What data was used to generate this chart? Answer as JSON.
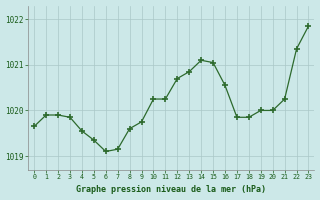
{
  "x": [
    0,
    1,
    2,
    3,
    4,
    5,
    6,
    7,
    8,
    9,
    10,
    11,
    12,
    13,
    14,
    15,
    16,
    17,
    18,
    19,
    20,
    21,
    22,
    23
  ],
  "y": [
    1019.65,
    1019.9,
    1019.9,
    1019.85,
    1019.55,
    1019.35,
    1019.1,
    1019.15,
    1019.6,
    1019.75,
    1020.25,
    1020.25,
    1020.7,
    1020.85,
    1021.1,
    1021.05,
    1020.55,
    1019.85,
    1019.85,
    1020.0,
    1020.0,
    1020.25,
    1021.35,
    1021.85
  ],
  "line_color": "#2d6a2d",
  "marker_color": "#2d6a2d",
  "bg_color": "#cce8e8",
  "grid_color": "#aac8c8",
  "xlabel": "Graphe pression niveau de la mer (hPa)",
  "xlabel_color": "#1a5c1a",
  "tick_label_color": "#1a5c1a",
  "ylim_min": 1018.7,
  "ylim_max": 1022.3,
  "yticks": [
    1019,
    1020,
    1021,
    1022
  ],
  "xticks": [
    0,
    1,
    2,
    3,
    4,
    5,
    6,
    7,
    8,
    9,
    10,
    11,
    12,
    13,
    14,
    15,
    16,
    17,
    18,
    19,
    20,
    21,
    22,
    23
  ]
}
